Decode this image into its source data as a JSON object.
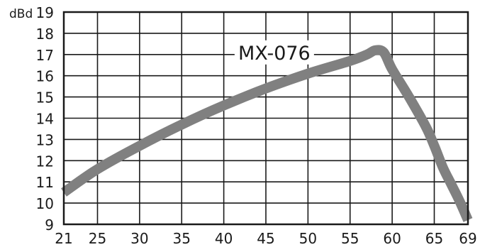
{
  "chart_data": {
    "type": "line",
    "title": "",
    "ylabel": "dBd",
    "xlabel": "",
    "xlim": [
      21,
      69
    ],
    "ylim": [
      9,
      19
    ],
    "x_ticks": [
      21,
      25,
      30,
      35,
      40,
      45,
      50,
      55,
      60,
      65,
      69
    ],
    "y_ticks": [
      9,
      10,
      11,
      12,
      13,
      14,
      15,
      16,
      17,
      18,
      19
    ],
    "grid": true,
    "series": [
      {
        "name": "MX-076",
        "color": "#808080",
        "x": [
          21,
          25,
          30,
          35,
          40,
          45,
          50,
          55,
          57,
          58,
          59,
          60,
          62,
          64,
          65,
          66,
          67,
          68,
          69
        ],
        "y": [
          10.5,
          11.6,
          12.7,
          13.7,
          14.6,
          15.4,
          16.1,
          16.7,
          17.0,
          17.2,
          17.1,
          16.3,
          15.0,
          13.6,
          12.7,
          11.7,
          10.9,
          10.1,
          9.2
        ]
      }
    ],
    "annotations": [
      {
        "text": "MX-076",
        "x": 46,
        "y": 17.1
      }
    ]
  }
}
